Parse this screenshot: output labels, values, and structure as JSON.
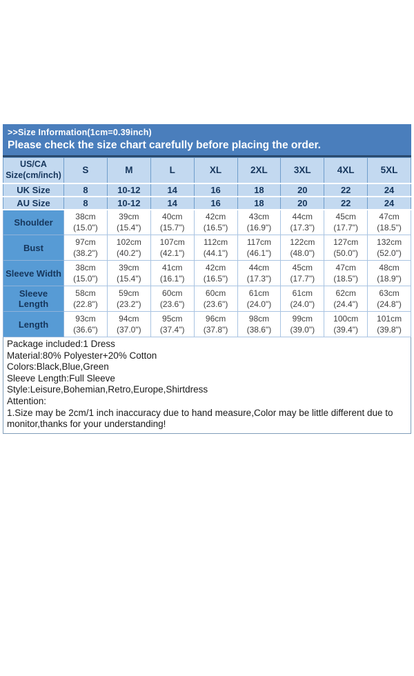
{
  "banner": {
    "title": ">>Size Information(1cm=0.39inch)",
    "subtitle": "Please check the size chart carefully before placing the order."
  },
  "size_chart": {
    "corner_header": "US/CA Size(cm/inch)",
    "sizes": [
      "S",
      "M",
      "L",
      "XL",
      "2XL",
      "3XL",
      "4XL",
      "5XL"
    ],
    "region_rows": [
      {
        "label": "UK Size",
        "values": [
          "8",
          "10-12",
          "14",
          "16",
          "18",
          "20",
          "22",
          "24"
        ]
      },
      {
        "label": "AU Size",
        "values": [
          "8",
          "10-12",
          "14",
          "16",
          "18",
          "20",
          "22",
          "24"
        ]
      }
    ],
    "measurement_rows": [
      {
        "label": "Shoulder",
        "values": [
          {
            "cm": "38cm",
            "in": "(15.0\")"
          },
          {
            "cm": "39cm",
            "in": "(15.4\")"
          },
          {
            "cm": "40cm",
            "in": "(15.7\")"
          },
          {
            "cm": "42cm",
            "in": "(16.5\")"
          },
          {
            "cm": "43cm",
            "in": "(16.9\")"
          },
          {
            "cm": "44cm",
            "in": "(17.3\")"
          },
          {
            "cm": "45cm",
            "in": "(17.7\")"
          },
          {
            "cm": "47cm",
            "in": "(18.5\")"
          }
        ]
      },
      {
        "label": "Bust",
        "values": [
          {
            "cm": "97cm",
            "in": "(38.2\")"
          },
          {
            "cm": "102cm",
            "in": "(40.2\")"
          },
          {
            "cm": "107cm",
            "in": "(42.1\")"
          },
          {
            "cm": "112cm",
            "in": "(44.1\")"
          },
          {
            "cm": "117cm",
            "in": "(46.1\")"
          },
          {
            "cm": "122cm",
            "in": "(48.0\")"
          },
          {
            "cm": "127cm",
            "in": "(50.0\")"
          },
          {
            "cm": "132cm",
            "in": "(52.0\")"
          }
        ]
      },
      {
        "label": "Sleeve Width",
        "values": [
          {
            "cm": "38cm",
            "in": "(15.0\")"
          },
          {
            "cm": "39cm",
            "in": "(15.4\")"
          },
          {
            "cm": "41cm",
            "in": "(16.1\")"
          },
          {
            "cm": "42cm",
            "in": "(16.5\")"
          },
          {
            "cm": "44cm",
            "in": "(17.3\")"
          },
          {
            "cm": "45cm",
            "in": "(17.7\")"
          },
          {
            "cm": "47cm",
            "in": "(18.5\")"
          },
          {
            "cm": "48cm",
            "in": "(18.9\")"
          }
        ]
      },
      {
        "label": "Sleeve Length",
        "values": [
          {
            "cm": "58cm",
            "in": "(22.8\")"
          },
          {
            "cm": "59cm",
            "in": "(23.2\")"
          },
          {
            "cm": "60cm",
            "in": "(23.6\")"
          },
          {
            "cm": "60cm",
            "in": "(23.6\")"
          },
          {
            "cm": "61cm",
            "in": "(24.0\")"
          },
          {
            "cm": "61cm",
            "in": "(24.0\")"
          },
          {
            "cm": "62cm",
            "in": "(24.4\")"
          },
          {
            "cm": "63cm",
            "in": "(24.8\")"
          }
        ]
      },
      {
        "label": "Length",
        "values": [
          {
            "cm": "93cm",
            "in": "(36.6\")"
          },
          {
            "cm": "94cm",
            "in": "(37.0\")"
          },
          {
            "cm": "95cm",
            "in": "(37.4\")"
          },
          {
            "cm": "96cm",
            "in": "(37.8\")"
          },
          {
            "cm": "98cm",
            "in": "(38.6\")"
          },
          {
            "cm": "99cm",
            "in": "(39.0\")"
          },
          {
            "cm": "100cm",
            "in": "(39.4\")"
          },
          {
            "cm": "101cm",
            "in": "(39.8\")"
          }
        ]
      }
    ]
  },
  "details": {
    "lines": [
      "Package included:1 Dress",
      "Material:80% Polyester+20% Cotton",
      "Colors:Black,Blue,Green",
      "Sleeve Length:Full Sleeve",
      "Style:Leisure,Bohemian,Retro,Europe,Shirtdress",
      "Attention:",
      "1.Size may be 2cm/1 inch inaccuracy due to hand measure,Color may be little different due to monitor,thanks for your understanding!"
    ]
  },
  "colors": {
    "banner_blue": "#4a7ebc",
    "header_light_blue": "#c3d9f0",
    "label_blue": "#579bd5",
    "navy_text": "#16365c",
    "banner_text": "#ffffff"
  }
}
